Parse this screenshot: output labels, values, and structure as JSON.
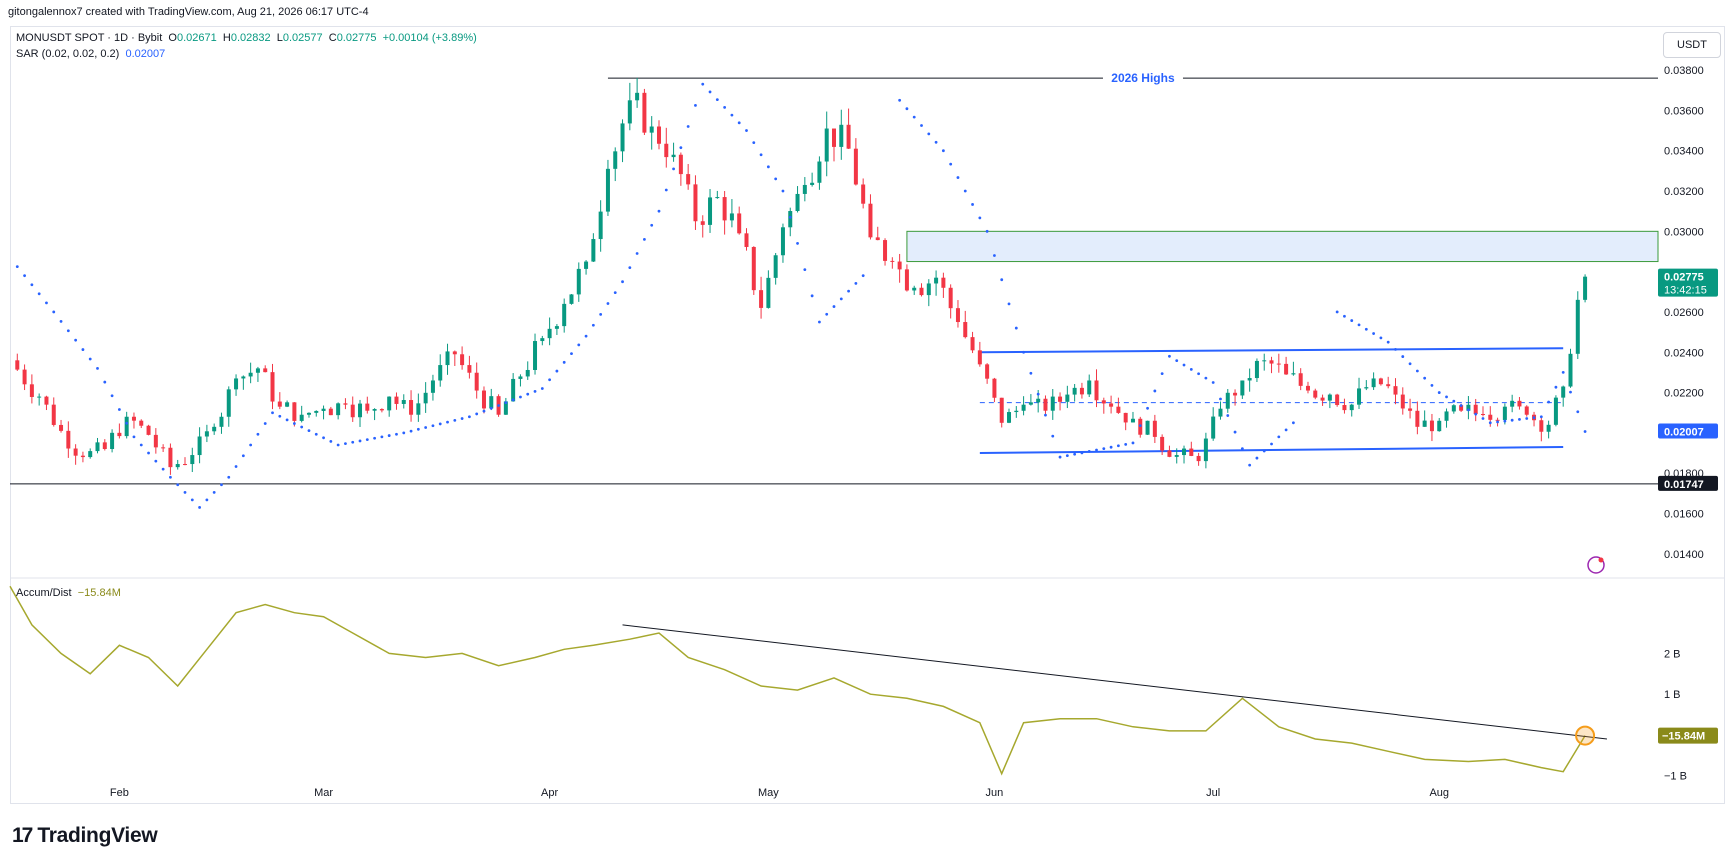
{
  "caption": "gitongalennox7 created with TradingView.com, Aug 21, 2026 06:17 UTC-4",
  "legend": {
    "symbol": "MONUSDT SPOT · 1D · Bybit",
    "o_label": "O",
    "o_value": "0.02671",
    "h_label": "H",
    "h_value": "0.02832",
    "l_label": "L",
    "l_value": "0.02577",
    "c_label": "C",
    "c_value": "0.02775",
    "change": "+0.00104 (+3.89%)",
    "sar_label": "SAR (0.02, 0.02, 0.2)",
    "sar_value": "0.02007",
    "ad_label": "Accum/Dist",
    "ad_value": "−15.84M"
  },
  "currency_button": "USDT",
  "brand": "TradingView",
  "colors": {
    "up": "#089981",
    "down": "#f23645",
    "sar": "#2962ff",
    "ad_line": "#a6a82e",
    "zone_fill": "#e3edfc",
    "zone_border": "#3a9a3a",
    "channel": "#2962ff",
    "highlight": "#f59c1a"
  },
  "chart_data": [
    {
      "type": "candlestick",
      "title": "MONUSDT SPOT · 1D · Bybit",
      "x_range": [
        "2026-01-17",
        "2026-08-21"
      ],
      "x_ticks": [
        {
          "label": "Feb",
          "date": "2026-02-01"
        },
        {
          "label": "Mar",
          "date": "2026-03-01"
        },
        {
          "label": "Apr",
          "date": "2026-04-01"
        },
        {
          "label": "May",
          "date": "2026-05-01"
        },
        {
          "label": "Jun",
          "date": "2026-06-01"
        },
        {
          "label": "Jul",
          "date": "2026-07-01"
        },
        {
          "label": "Aug",
          "date": "2026-08-01"
        }
      ],
      "y_range": [
        0.0128,
        0.0385
      ],
      "y_ticks": [
        "0.03800",
        "0.03600",
        "0.03400",
        "0.03200",
        "0.03000",
        "0.02600",
        "0.02400",
        "0.02200",
        "0.01800",
        "0.01600",
        "0.01400"
      ],
      "price_badges": [
        {
          "value": 0.02775,
          "label": "0.02775",
          "sub": "13:42:15",
          "style": "last"
        },
        {
          "value": 0.02007,
          "label": "0.02007",
          "style": "sar"
        },
        {
          "value": 0.01747,
          "label": "0.01747",
          "style": "level"
        }
      ],
      "close_series": [
        {
          "date": "2026-01-17",
          "close": 0.0236
        },
        {
          "date": "2026-01-21",
          "close": 0.0218
        },
        {
          "date": "2026-01-24",
          "close": 0.0201
        },
        {
          "date": "2026-01-27",
          "close": 0.0188
        },
        {
          "date": "2026-01-30",
          "close": 0.0192
        },
        {
          "date": "2026-02-02",
          "close": 0.0208
        },
        {
          "date": "2026-02-05",
          "close": 0.0199
        },
        {
          "date": "2026-02-08",
          "close": 0.0183
        },
        {
          "date": "2026-02-11",
          "close": 0.0189
        },
        {
          "date": "2026-02-14",
          "close": 0.0203
        },
        {
          "date": "2026-02-17",
          "close": 0.0227
        },
        {
          "date": "2026-02-20",
          "close": 0.0232
        },
        {
          "date": "2026-02-23",
          "close": 0.0213
        },
        {
          "date": "2026-02-26",
          "close": 0.0209
        },
        {
          "date": "2026-03-01",
          "close": 0.0212
        },
        {
          "date": "2026-03-04",
          "close": 0.0214
        },
        {
          "date": "2026-03-07",
          "close": 0.0211
        },
        {
          "date": "2026-03-10",
          "close": 0.0218
        },
        {
          "date": "2026-03-13",
          "close": 0.0209
        },
        {
          "date": "2026-03-16",
          "close": 0.0226
        },
        {
          "date": "2026-03-19",
          "close": 0.0239
        },
        {
          "date": "2026-03-22",
          "close": 0.0221
        },
        {
          "date": "2026-03-25",
          "close": 0.0209
        },
        {
          "date": "2026-03-28",
          "close": 0.0228
        },
        {
          "date": "2026-03-31",
          "close": 0.0247
        },
        {
          "date": "2026-04-03",
          "close": 0.0264
        },
        {
          "date": "2026-04-06",
          "close": 0.0285
        },
        {
          "date": "2026-04-09",
          "close": 0.0331
        },
        {
          "date": "2026-04-12",
          "close": 0.0365
        },
        {
          "date": "2026-04-15",
          "close": 0.0352
        },
        {
          "date": "2026-04-18",
          "close": 0.0338
        },
        {
          "date": "2026-04-21",
          "close": 0.0305
        },
        {
          "date": "2026-04-24",
          "close": 0.0317
        },
        {
          "date": "2026-04-27",
          "close": 0.0299
        },
        {
          "date": "2026-04-30",
          "close": 0.0262
        },
        {
          "date": "2026-05-03",
          "close": 0.0302
        },
        {
          "date": "2026-05-06",
          "close": 0.0323
        },
        {
          "date": "2026-05-09",
          "close": 0.0351
        },
        {
          "date": "2026-05-12",
          "close": 0.0341
        },
        {
          "date": "2026-05-15",
          "close": 0.0297
        },
        {
          "date": "2026-05-18",
          "close": 0.0285
        },
        {
          "date": "2026-05-21",
          "close": 0.0272
        },
        {
          "date": "2026-05-24",
          "close": 0.0277
        },
        {
          "date": "2026-05-27",
          "close": 0.0255
        },
        {
          "date": "2026-05-30",
          "close": 0.0234
        },
        {
          "date": "2026-06-02",
          "close": 0.0205
        },
        {
          "date": "2026-06-05",
          "close": 0.0214
        },
        {
          "date": "2026-06-08",
          "close": 0.0211
        },
        {
          "date": "2026-06-11",
          "close": 0.0219
        },
        {
          "date": "2026-06-14",
          "close": 0.0226
        },
        {
          "date": "2026-06-17",
          "close": 0.0213
        },
        {
          "date": "2026-06-20",
          "close": 0.0207
        },
        {
          "date": "2026-06-23",
          "close": 0.0198
        },
        {
          "date": "2026-06-26",
          "close": 0.0189
        },
        {
          "date": "2026-06-29",
          "close": 0.0186
        },
        {
          "date": "2026-07-02",
          "close": 0.0212
        },
        {
          "date": "2026-07-05",
          "close": 0.0226
        },
        {
          "date": "2026-07-08",
          "close": 0.0236
        },
        {
          "date": "2026-07-11",
          "close": 0.0229
        },
        {
          "date": "2026-07-14",
          "close": 0.0221
        },
        {
          "date": "2026-07-17",
          "close": 0.0219
        },
        {
          "date": "2026-07-20",
          "close": 0.0214
        },
        {
          "date": "2026-07-23",
          "close": 0.0227
        },
        {
          "date": "2026-07-26",
          "close": 0.0219
        },
        {
          "date": "2026-07-29",
          "close": 0.0203
        },
        {
          "date": "2026-08-01",
          "close": 0.0206
        },
        {
          "date": "2026-08-04",
          "close": 0.0211
        },
        {
          "date": "2026-08-07",
          "close": 0.0209
        },
        {
          "date": "2026-08-10",
          "close": 0.0213
        },
        {
          "date": "2026-08-13",
          "close": 0.0209
        },
        {
          "date": "2026-08-16",
          "close": 0.0204
        },
        {
          "date": "2026-08-18",
          "close": 0.0223
        },
        {
          "date": "2026-08-20",
          "close": 0.0266
        },
        {
          "date": "2026-08-21",
          "close": 0.02775
        }
      ],
      "sar_series": [
        {
          "date": "2026-01-17",
          "value": 0.0287
        },
        {
          "date": "2026-01-23",
          "value": 0.026
        },
        {
          "date": "2026-01-29",
          "value": 0.0232
        },
        {
          "date": "2026-02-03",
          "value": 0.0198
        },
        {
          "date": "2026-02-08",
          "value": 0.0178
        },
        {
          "date": "2026-02-12",
          "value": 0.0163
        },
        {
          "date": "2026-02-16",
          "value": 0.0178
        },
        {
          "date": "2026-02-22",
          "value": 0.021
        },
        {
          "date": "2026-03-03",
          "value": 0.0194
        },
        {
          "date": "2026-03-12",
          "value": 0.02
        },
        {
          "date": "2026-03-21",
          "value": 0.0208
        },
        {
          "date": "2026-03-31",
          "value": 0.0222
        },
        {
          "date": "2026-04-06",
          "value": 0.0248
        },
        {
          "date": "2026-04-11",
          "value": 0.0275
        },
        {
          "date": "2026-04-16",
          "value": 0.031
        },
        {
          "date": "2026-04-22",
          "value": 0.0373
        },
        {
          "date": "2026-04-28",
          "value": 0.035
        },
        {
          "date": "2026-05-03",
          "value": 0.032
        },
        {
          "date": "2026-05-08",
          "value": 0.0255
        },
        {
          "date": "2026-05-14",
          "value": 0.0278
        },
        {
          "date": "2026-05-19",
          "value": 0.0365
        },
        {
          "date": "2026-05-25",
          "value": 0.034
        },
        {
          "date": "2026-05-31",
          "value": 0.03
        },
        {
          "date": "2026-06-05",
          "value": 0.024
        },
        {
          "date": "2026-06-10",
          "value": 0.0188
        },
        {
          "date": "2026-06-20",
          "value": 0.0195
        },
        {
          "date": "2026-06-25",
          "value": 0.0238
        },
        {
          "date": "2026-07-01",
          "value": 0.0225
        },
        {
          "date": "2026-07-06",
          "value": 0.0184
        },
        {
          "date": "2026-07-12",
          "value": 0.0205
        },
        {
          "date": "2026-07-18",
          "value": 0.026
        },
        {
          "date": "2026-07-25",
          "value": 0.0245
        },
        {
          "date": "2026-08-01",
          "value": 0.022
        },
        {
          "date": "2026-08-08",
          "value": 0.0205
        },
        {
          "date": "2026-08-15",
          "value": 0.0208
        },
        {
          "date": "2026-08-18",
          "value": 0.023
        },
        {
          "date": "2026-08-21",
          "value": 0.02007
        }
      ],
      "annotations": [
        {
          "kind": "horizontal_line",
          "label": "2026 Highs",
          "value": 0.0376,
          "from": "2026-04-09",
          "to": "2026-08-31"
        },
        {
          "kind": "horizontal_line",
          "label": "",
          "value": 0.01747,
          "from": "2026-01-17",
          "to": "2026-08-31"
        },
        {
          "kind": "zone",
          "label": "",
          "top": 0.03,
          "bottom": 0.0285,
          "from": "2026-05-20",
          "to": "2026-08-31"
        },
        {
          "kind": "channel_top",
          "label": "",
          "value_start": 0.024,
          "value_end": 0.0242,
          "from": "2026-05-30",
          "to": "2026-08-18"
        },
        {
          "kind": "channel_bottom",
          "label": "",
          "value_start": 0.019,
          "value_end": 0.0193,
          "from": "2026-05-30",
          "to": "2026-08-18"
        },
        {
          "kind": "channel_mid",
          "label": "",
          "value": 0.0215,
          "from": "2026-05-30",
          "to": "2026-08-18"
        }
      ]
    },
    {
      "type": "line",
      "title": "Accum/Dist",
      "y_range": [
        -1.35,
        3.85
      ],
      "y_unit": "B",
      "y_ticks": [
        {
          "label": "2 B",
          "value": 2
        },
        {
          "label": "1 B",
          "value": 1
        },
        {
          "label": "−1 B",
          "value": -1
        }
      ],
      "last_label": "−15.84M",
      "last_value": -0.01584,
      "series": [
        {
          "date": "2026-01-17",
          "value": 3.65
        },
        {
          "date": "2026-01-20",
          "value": 2.7
        },
        {
          "date": "2026-01-24",
          "value": 2.0
        },
        {
          "date": "2026-01-28",
          "value": 1.5
        },
        {
          "date": "2026-02-01",
          "value": 2.2
        },
        {
          "date": "2026-02-05",
          "value": 1.9
        },
        {
          "date": "2026-02-09",
          "value": 1.2
        },
        {
          "date": "2026-02-13",
          "value": 2.1
        },
        {
          "date": "2026-02-17",
          "value": 3.0
        },
        {
          "date": "2026-02-21",
          "value": 3.2
        },
        {
          "date": "2026-02-25",
          "value": 3.0
        },
        {
          "date": "2026-03-01",
          "value": 2.9
        },
        {
          "date": "2026-03-05",
          "value": 2.5
        },
        {
          "date": "2026-03-10",
          "value": 2.0
        },
        {
          "date": "2026-03-15",
          "value": 1.9
        },
        {
          "date": "2026-03-20",
          "value": 2.0
        },
        {
          "date": "2026-03-25",
          "value": 1.7
        },
        {
          "date": "2026-03-30",
          "value": 1.9
        },
        {
          "date": "2026-04-03",
          "value": 2.1
        },
        {
          "date": "2026-04-07",
          "value": 2.2
        },
        {
          "date": "2026-04-12",
          "value": 2.35
        },
        {
          "date": "2026-04-16",
          "value": 2.5
        },
        {
          "date": "2026-04-20",
          "value": 1.9
        },
        {
          "date": "2026-04-25",
          "value": 1.6
        },
        {
          "date": "2026-04-30",
          "value": 1.2
        },
        {
          "date": "2026-05-05",
          "value": 1.1
        },
        {
          "date": "2026-05-10",
          "value": 1.4
        },
        {
          "date": "2026-05-15",
          "value": 1.0
        },
        {
          "date": "2026-05-20",
          "value": 0.9
        },
        {
          "date": "2026-05-25",
          "value": 0.7
        },
        {
          "date": "2026-05-30",
          "value": 0.3
        },
        {
          "date": "2026-06-02",
          "value": -0.95
        },
        {
          "date": "2026-06-05",
          "value": 0.3
        },
        {
          "date": "2026-06-10",
          "value": 0.4
        },
        {
          "date": "2026-06-15",
          "value": 0.4
        },
        {
          "date": "2026-06-20",
          "value": 0.2
        },
        {
          "date": "2026-06-25",
          "value": 0.1
        },
        {
          "date": "2026-06-30",
          "value": 0.1
        },
        {
          "date": "2026-07-05",
          "value": 0.9
        },
        {
          "date": "2026-07-10",
          "value": 0.2
        },
        {
          "date": "2026-07-15",
          "value": -0.1
        },
        {
          "date": "2026-07-20",
          "value": -0.2
        },
        {
          "date": "2026-07-25",
          "value": -0.4
        },
        {
          "date": "2026-07-30",
          "value": -0.6
        },
        {
          "date": "2026-08-05",
          "value": -0.65
        },
        {
          "date": "2026-08-10",
          "value": -0.6
        },
        {
          "date": "2026-08-15",
          "value": -0.8
        },
        {
          "date": "2026-08-18",
          "value": -0.9
        },
        {
          "date": "2026-08-21",
          "value": -0.01584
        }
      ],
      "trendline": {
        "from": {
          "date": "2026-04-11",
          "value": 2.7
        },
        "to": {
          "date": "2026-08-24",
          "value": -0.1
        }
      }
    }
  ]
}
